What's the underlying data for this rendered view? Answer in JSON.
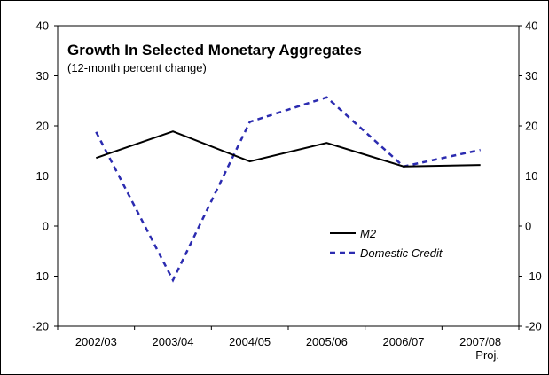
{
  "chart_data": {
    "type": "line",
    "title": "Growth In Selected Monetary Aggregates",
    "subtitle": "(12-month percent change)",
    "categories": [
      "2002/03",
      "2003/04",
      "2004/05",
      "2005/06",
      "2006/07",
      "2007/08"
    ],
    "category_sublabels": [
      "",
      "",
      "",
      "",
      "",
      "Proj."
    ],
    "series": [
      {
        "name": "M2",
        "values": [
          13.6,
          18.9,
          12.9,
          16.6,
          11.9,
          12.2
        ],
        "color": "#000000",
        "dash": "solid"
      },
      {
        "name": "Domestic Credit",
        "values": [
          18.8,
          -10.8,
          20.8,
          25.7,
          11.9,
          15.2
        ],
        "color": "#2b2bb0",
        "dash": "dashed"
      }
    ],
    "ylim": [
      -20,
      40
    ],
    "yticks": [
      -20,
      -10,
      0,
      10,
      20,
      30,
      40
    ],
    "ytick_labels": [
      "-20",
      "-10",
      "0",
      "10",
      "20",
      "30",
      "40"
    ],
    "right_axis_ticks": [
      -20,
      -10,
      0,
      10,
      20,
      30,
      40
    ],
    "right_axis_labels": [
      "-20",
      "-10",
      "0",
      "10",
      "20",
      "30",
      "40"
    ],
    "grid": false,
    "legend_position": "center-right"
  }
}
